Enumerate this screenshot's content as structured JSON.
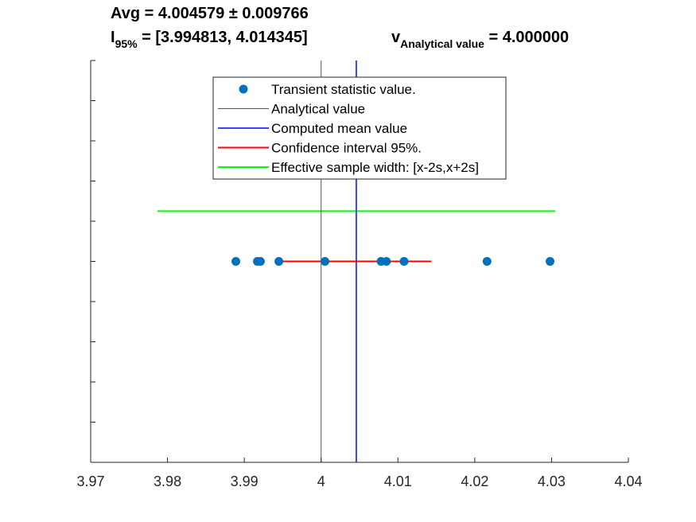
{
  "chart_data": {
    "type": "scatter",
    "title": {
      "line1": {
        "prefix": "Avg = ",
        "value": "4.004579",
        "pm": "±",
        "err": "0.009766"
      },
      "line2": {
        "ci_symbol": "I",
        "ci_sub": "95%",
        "ci_text": " = [3.994813, 4.014345]",
        "ref_symbol": "v",
        "ref_sub": "Analytical value",
        "ref_text": " = 4.000000"
      }
    },
    "xlim": [
      3.97,
      4.04
    ],
    "xticks": [
      3.97,
      3.98,
      3.99,
      4.0,
      4.01,
      4.02,
      4.03,
      4.04
    ],
    "xtick_labels": [
      "3.97",
      "3.98",
      "3.99",
      "4",
      "4.01",
      "4.02",
      "4.03",
      "4.04"
    ],
    "y_ticks_count": 10,
    "y_labels_shown": false,
    "grid": false,
    "legend_placement": "top-center",
    "series": [
      {
        "name": "Transient statistic value.",
        "kind": "points",
        "color": "#0072BD",
        "x": [
          3.9889,
          3.9917,
          3.9921,
          3.9945,
          4.0005,
          4.0078,
          4.0085,
          4.0108,
          4.0216,
          4.0298
        ],
        "y": 0
      },
      {
        "name": "Analytical value",
        "kind": "vline",
        "color": "#555555",
        "x": 4.0
      },
      {
        "name": "Computed mean value",
        "kind": "vline",
        "color": "#4040ff",
        "x": 4.004579
      },
      {
        "name": "Confidence interval 95%.",
        "kind": "hline",
        "color": "#ff0000",
        "x": [
          3.994813,
          4.014345
        ],
        "y": 0
      },
      {
        "name": "Effective sample width: [x-2s,x+2s]",
        "kind": "hline",
        "color": "#00ff00",
        "x": [
          3.9787,
          4.0305
        ],
        "y": 0.25
      }
    ]
  }
}
